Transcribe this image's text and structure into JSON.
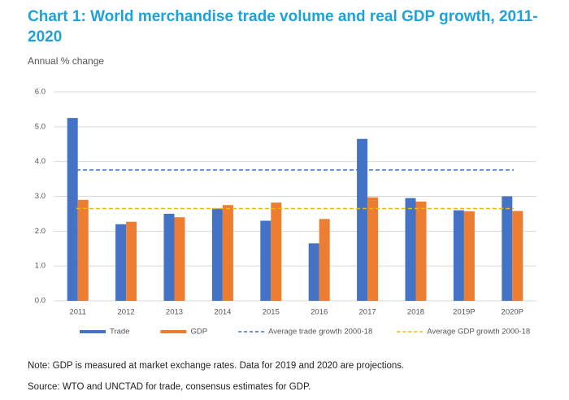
{
  "chart_data": {
    "type": "bar",
    "title": "Chart 1: World merchandise trade volume and real GDP growth, 2011-2020",
    "subtitle": "Annual % change",
    "categories": [
      "2011",
      "2012",
      "2013",
      "2014",
      "2015",
      "2016",
      "2017",
      "2018",
      "2019P",
      "2020P"
    ],
    "series": [
      {
        "name": "Trade",
        "color": "#4472c4",
        "values": [
          5.25,
          2.2,
          2.5,
          2.65,
          2.3,
          1.65,
          4.65,
          2.95,
          2.6,
          3.0
        ]
      },
      {
        "name": "GDP",
        "color": "#ed7d31",
        "values": [
          2.9,
          2.27,
          2.4,
          2.75,
          2.82,
          2.35,
          2.97,
          2.85,
          2.57,
          2.58
        ]
      }
    ],
    "reference_lines": [
      {
        "name": "Average trade growth 2000-18",
        "color": "#4472c4",
        "value": 3.76
      },
      {
        "name": "Average GDP growth 2000-18",
        "color": "#f2b800",
        "value": 2.65
      }
    ],
    "ylim": [
      0,
      6
    ],
    "yticks": [
      {
        "value": 0,
        "label": "0.0"
      },
      {
        "value": 1,
        "label": "1.0"
      },
      {
        "value": 2,
        "label": "2.0"
      },
      {
        "value": 3,
        "label": "3.0"
      },
      {
        "value": 4,
        "label": "4.0"
      },
      {
        "value": 5,
        "label": "5.0"
      },
      {
        "value": 6,
        "label": "6.0"
      }
    ],
    "grid": true,
    "note": "Note: GDP is measured at market exchange rates. Data for 2019 and 2020 are projections.",
    "source": "Source: WTO and UNCTAD for trade, consensus estimates for GDP."
  }
}
